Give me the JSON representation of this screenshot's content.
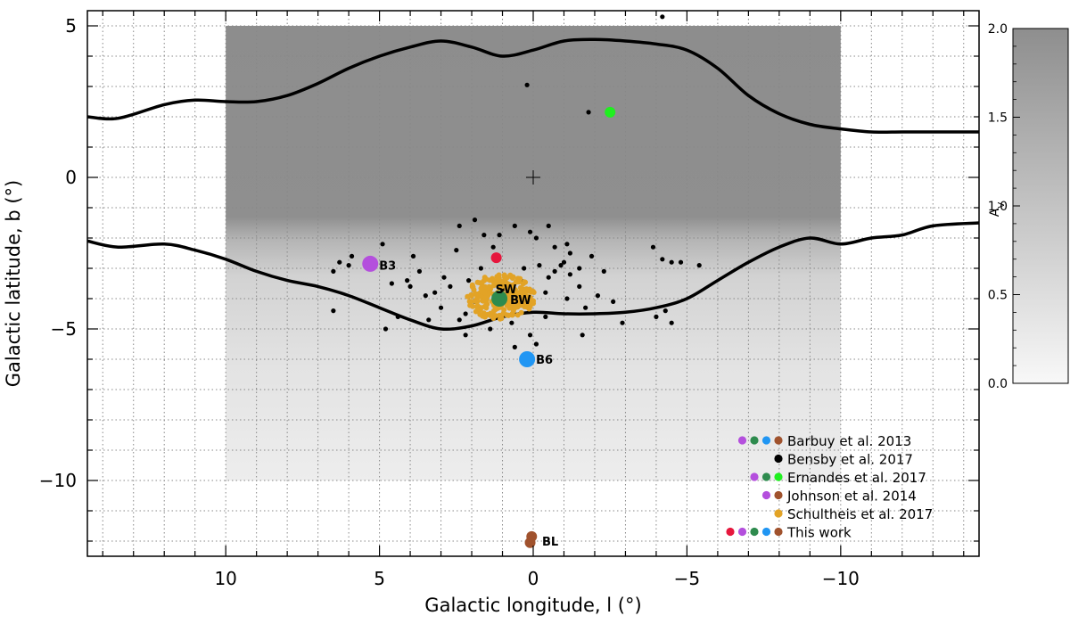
{
  "chart_data": {
    "type": "scatter",
    "title": "",
    "xlabel": "Galactic longitude, l (°)",
    "ylabel": "Galactic latitude, b (°)",
    "xlim": [
      14.5,
      -14.5
    ],
    "ylim": [
      -12.5,
      5.5
    ],
    "x_reversed": true,
    "grid": true,
    "legend_position": "bottom-right",
    "x_ticks": [
      10,
      5,
      0,
      -5,
      -10
    ],
    "x_tick_labels": [
      "10",
      "5",
      "0",
      "−5",
      "−10"
    ],
    "y_ticks": [
      5,
      0,
      -5,
      -10
    ],
    "y_tick_labels": [
      "5",
      "0",
      "−5",
      "−10"
    ],
    "extinction_map": {
      "l_range": [
        10,
        -10
      ],
      "b_range": [
        -10,
        5
      ],
      "colorbar_label": "A_V",
      "colorbar_range": [
        0.0,
        2.0
      ],
      "colorbar_ticks": [
        "0.0",
        "0.5",
        "1.0",
        "1.5",
        "2.0"
      ]
    },
    "boundary_curves": [
      {
        "l": [
          14.5,
          13.5,
          12,
          11,
          10,
          9,
          8,
          7,
          6,
          5,
          4,
          3,
          2,
          1,
          0,
          -1,
          -2,
          -3,
          -4,
          -5,
          -6,
          -7,
          -8,
          -9,
          -10,
          -11,
          -12,
          -13,
          -14.5
        ],
        "b": [
          2.0,
          1.95,
          2.4,
          2.55,
          2.5,
          2.5,
          2.7,
          3.1,
          3.6,
          4.0,
          4.3,
          4.5,
          4.3,
          4.0,
          4.2,
          4.5,
          4.55,
          4.5,
          4.4,
          4.2,
          3.6,
          2.7,
          2.1,
          1.75,
          1.6,
          1.5,
          1.5,
          1.5,
          1.5
        ]
      },
      {
        "l": [
          14.5,
          13.5,
          12,
          11,
          10,
          9,
          8,
          7,
          6,
          5,
          4,
          3,
          2,
          1,
          0,
          -1,
          -2,
          -3,
          -4,
          -5,
          -6,
          -7,
          -8,
          -9,
          -10,
          -11,
          -12,
          -13,
          -14.5
        ],
        "b": [
          -2.1,
          -2.3,
          -2.2,
          -2.4,
          -2.7,
          -3.1,
          -3.4,
          -3.6,
          -3.9,
          -4.3,
          -4.7,
          -5.0,
          -4.9,
          -4.6,
          -4.45,
          -4.5,
          -4.5,
          -4.45,
          -4.3,
          -4.0,
          -3.4,
          -2.8,
          -2.3,
          -2.0,
          -2.2,
          -2.0,
          -1.9,
          -1.6,
          -1.5
        ]
      }
    ],
    "center_marker": {
      "l": 0,
      "b": 0
    },
    "fields": [
      {
        "label": "B3",
        "l": 5.3,
        "b": -2.9
      },
      {
        "label": "SW",
        "l": 1.2,
        "b": -3.3
      },
      {
        "label": "BW",
        "l": 1.1,
        "b": -4.0
      },
      {
        "label": "B6",
        "l": 0.2,
        "b": -6.0
      },
      {
        "label": "BL",
        "l": 0.0,
        "b": -12.0
      }
    ],
    "series": [
      {
        "name": "Bensby et al. 2017",
        "color": "#000000",
        "marker_size": 2.6,
        "points": [
          [
            -4.2,
            5.3
          ],
          [
            0.2,
            3.05
          ],
          [
            -1.8,
            2.15
          ],
          [
            4.9,
            -2.2
          ],
          [
            3.9,
            -2.6
          ],
          [
            2.5,
            -2.4
          ],
          [
            2.4,
            -1.6
          ],
          [
            1.9,
            -1.4
          ],
          [
            1.6,
            -1.9
          ],
          [
            1.3,
            -2.3
          ],
          [
            1.1,
            -1.9
          ],
          [
            0.6,
            -1.6
          ],
          [
            0.1,
            -1.8
          ],
          [
            -0.1,
            -2.0
          ],
          [
            -0.5,
            -1.6
          ],
          [
            -0.7,
            -2.3
          ],
          [
            -1.1,
            -2.2
          ],
          [
            -1.2,
            -2.5
          ],
          [
            -0.9,
            -2.9
          ],
          [
            -1.5,
            -3.0
          ],
          [
            -1.9,
            -2.6
          ],
          [
            -2.3,
            -3.1
          ],
          [
            -1.2,
            -3.2
          ],
          [
            -0.5,
            -3.3
          ],
          [
            0.4,
            -3.4
          ],
          [
            -0.4,
            -3.8
          ],
          [
            -1.1,
            -4.0
          ],
          [
            -1.5,
            -3.6
          ],
          [
            -1.7,
            -4.3
          ],
          [
            -2.1,
            -3.9
          ],
          [
            -2.6,
            -4.1
          ],
          [
            -2.9,
            -4.8
          ],
          [
            -0.4,
            -4.6
          ],
          [
            2.4,
            -4.7
          ],
          [
            3.0,
            -4.3
          ],
          [
            3.4,
            -4.7
          ],
          [
            4.4,
            -4.6
          ],
          [
            4.8,
            -5.0
          ],
          [
            6.5,
            -4.4
          ],
          [
            6.5,
            -3.1
          ],
          [
            6.3,
            -2.8
          ],
          [
            6.0,
            -2.9
          ],
          [
            5.9,
            -2.6
          ],
          [
            4.1,
            -3.4
          ],
          [
            4.0,
            -3.6
          ],
          [
            3.5,
            -3.9
          ],
          [
            3.2,
            -3.8
          ],
          [
            2.7,
            -3.6
          ],
          [
            2.1,
            -3.4
          ],
          [
            1.7,
            -3.0
          ],
          [
            1.9,
            -4.1
          ],
          [
            2.2,
            -4.5
          ],
          [
            1.4,
            -5.0
          ],
          [
            2.2,
            -5.2
          ],
          [
            0.7,
            -4.8
          ],
          [
            0.1,
            -5.2
          ],
          [
            -0.1,
            -5.5
          ],
          [
            0.6,
            -5.6
          ],
          [
            -1.6,
            -5.2
          ],
          [
            -3.9,
            -2.3
          ],
          [
            -4.2,
            -2.7
          ],
          [
            -4.5,
            -2.8
          ],
          [
            -4.8,
            -2.8
          ],
          [
            -5.4,
            -2.9
          ],
          [
            -4.0,
            -4.6
          ],
          [
            -4.3,
            -4.4
          ],
          [
            -4.5,
            -4.8
          ],
          [
            -1.0,
            -2.8
          ],
          [
            -0.2,
            -2.9
          ],
          [
            0.3,
            -3.0
          ],
          [
            1.0,
            -3.7
          ],
          [
            -0.7,
            -3.1
          ],
          [
            3.7,
            -3.1
          ],
          [
            4.6,
            -3.5
          ],
          [
            2.9,
            -3.3
          ]
        ]
      },
      {
        "name": "Schultheis et al. 2017",
        "color": "#e2a326",
        "marker_size": 3,
        "region": {
          "l": 1.05,
          "b": -3.95,
          "rl": 1.1,
          "rb": 0.75
        }
      },
      {
        "name": "This work",
        "color": "#e6173d",
        "marker_size": 6,
        "points": [
          [
            1.2,
            -2.65
          ]
        ]
      },
      {
        "name": "Johnson et al. 2014",
        "color": "#b44fdd",
        "marker_size": 9,
        "points": [
          [
            5.3,
            -2.85
          ]
        ]
      },
      {
        "name": "Ernandes et al. 2017",
        "color": "#2e8b4e",
        "marker_size": 9,
        "points": [
          [
            1.1,
            -4.0
          ]
        ]
      },
      {
        "name": "Barbuy et al. 2013",
        "color": "#2196f3",
        "marker_size": 9,
        "points": [
          [
            0.2,
            -6.0
          ]
        ]
      },
      {
        "name": "Barbuy et al. 2013 (BL)",
        "color": "#a0522d",
        "marker_size": 6,
        "points": [
          [
            0.1,
            -12.05
          ],
          [
            0.05,
            -11.85
          ]
        ]
      },
      {
        "name": "Ernandes et al. 2017 (green)",
        "color": "#1ff01f",
        "marker_size": 6,
        "points": [
          [
            -2.5,
            2.15
          ]
        ]
      }
    ],
    "legend": [
      {
        "label": "Barbuy et al. 2013",
        "colors": [
          "#b44fdd",
          "#2e8b4e",
          "#2196f3",
          "#a0522d"
        ]
      },
      {
        "label": "Bensby et al. 2017",
        "colors": [
          "#000000"
        ]
      },
      {
        "label": "Ernandes et al. 2017",
        "colors": [
          "#b44fdd",
          "#2e8b4e",
          "#1ff01f"
        ]
      },
      {
        "label": "Johnson et al. 2014",
        "colors": [
          "#b44fdd",
          "#a0522d"
        ]
      },
      {
        "label": "Schultheis et al. 2017",
        "colors": [
          "#e2a326"
        ]
      },
      {
        "label": "This work",
        "colors": [
          "#e6173d",
          "#b44fdd",
          "#2e8b4e",
          "#2196f3",
          "#a0522d"
        ]
      }
    ]
  }
}
